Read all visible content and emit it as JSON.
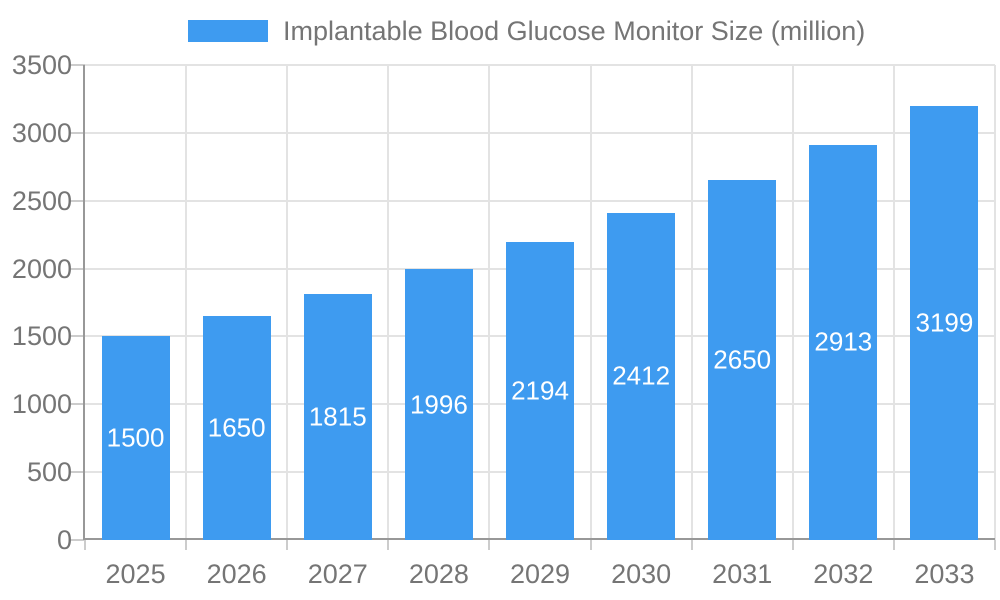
{
  "legend": {
    "label": "Implantable Blood Glucose Monitor Size (million)"
  },
  "chart_data": {
    "type": "bar",
    "title": "Implantable Blood Glucose Monitor Size (million)",
    "categories": [
      "2025",
      "2026",
      "2027",
      "2028",
      "2029",
      "2030",
      "2031",
      "2032",
      "2033"
    ],
    "values": [
      1500,
      1650,
      1815,
      1996,
      2194,
      2412,
      2650,
      2913,
      3199
    ],
    "series": [
      {
        "name": "Implantable Blood Glucose Monitor Size (million)",
        "values": [
          1500,
          1650,
          1815,
          1996,
          2194,
          2412,
          2650,
          2913,
          3199
        ]
      }
    ],
    "xlabel": "",
    "ylabel": "",
    "ylim": [
      0,
      3500
    ],
    "yticks": [
      0,
      500,
      1000,
      1500,
      2000,
      2500,
      3000,
      3500
    ],
    "grid": true,
    "legend_position": "top-center",
    "value_labels": "inside-middle",
    "colors": {
      "bar": "#3E9BF0",
      "grid": "#E3E3E3",
      "axis_line": "#989898",
      "tick": "#CCCCCC",
      "axis_text": "#757575",
      "value_text": "#FFFFFF",
      "background": "#FFFFFF"
    }
  }
}
